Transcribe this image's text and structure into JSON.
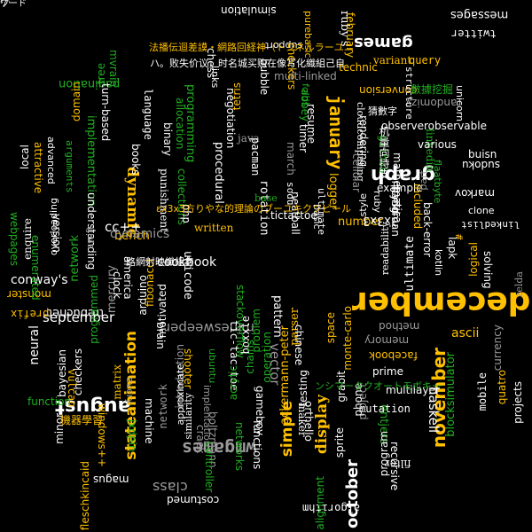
{
  "palette": {
    "background": "#000000",
    "white": "#ffffff",
    "gray": "#9a9a9a",
    "yellow": "#ffc000",
    "green": "#20b020",
    "lime": "#88e000"
  },
  "words": [
    {
      "text": "december",
      "c": "yellow"
    },
    {
      "text": "august",
      "c": "white"
    },
    {
      "text": "november",
      "c": "yellow"
    },
    {
      "text": "january",
      "c": "yellow"
    },
    {
      "text": "stateanimation",
      "c": "yellow"
    },
    {
      "text": "display",
      "c": "yellow"
    },
    {
      "text": "simple",
      "c": "yellow"
    },
    {
      "text": "graph",
      "c": "white"
    },
    {
      "text": "class",
      "c": "gray"
    },
    {
      "text": "games",
      "c": "white"
    },
    {
      "text": "wmgames",
      "c": "gray"
    },
    {
      "text": "september",
      "c": "white"
    },
    {
      "text": "neural",
      "c": "white"
    },
    {
      "text": "october",
      "c": "white"
    },
    {
      "text": "network",
      "c": "green"
    },
    {
      "text": "programming",
      "c": "green"
    },
    {
      "text": "dynamic",
      "c": "yellow"
    },
    {
      "text": "rotation",
      "c": "white"
    },
    {
      "text": "vector",
      "c": "gray"
    },
    {
      "text": "conway's",
      "c": "white"
    },
    {
      "text": "shooter",
      "c": "yellow"
    },
    {
      "text": "ascii",
      "c": "yellow"
    },
    {
      "text": "facebook",
      "c": "yellow"
    },
    {
      "text": "messages",
      "c": "white"
    },
    {
      "text": "twitter",
      "c": "white"
    },
    {
      "text": "support",
      "c": "white"
    },
    {
      "text": "chess",
      "c": "white"
    },
    {
      "text": "ruby's",
      "c": "white"
    },
    {
      "text": "haskell",
      "c": "white"
    },
    {
      "text": "entjers",
      "c": "green"
    },
    {
      "text": "monster",
      "c": "yellow"
    },
    {
      "text": "prefix",
      "c": "yellow"
    },
    {
      "text": "trebuchet",
      "c": "white"
    },
    {
      "text": "ackermann-peter",
      "c": "yellow"
    },
    {
      "text": "stackoverflow",
      "c": "green"
    },
    {
      "text": "minesweeper",
      "c": "gray"
    },
    {
      "text": "operation",
      "c": "green"
    },
    {
      "text": "problem",
      "c": "green"
    },
    {
      "text": "parser",
      "c": "yellow"
    },
    {
      "text": "pattern",
      "c": "white"
    },
    {
      "text": "monte-carlo",
      "c": "yellow"
    },
    {
      "text": "space",
      "c": "yellow"
    },
    {
      "text": "memory",
      "c": "gray"
    },
    {
      "text": "method",
      "c": "gray"
    },
    {
      "text": "prime",
      "c": "white"
    },
    {
      "text": "mutation",
      "c": "white"
    },
    {
      "text": "multilayer",
      "c": "white"
    },
    {
      "text": "blocksimulator",
      "c": "green"
    },
    {
      "text": "currency",
      "c": "gray"
    },
    {
      "text": "zelda",
      "c": "gray"
    },
    {
      "text": "solving",
      "c": "white"
    },
    {
      "text": "logical",
      "c": "yellow"
    },
    {
      "text": "linkedlist",
      "c": "white"
    },
    {
      "text": "clone",
      "c": "white"
    },
    {
      "text": "markov",
      "c": "white"
    },
    {
      "text": "sudoku",
      "c": "white"
    },
    {
      "text": "buisn",
      "c": "white"
    },
    {
      "text": "observerobservable",
      "c": "white"
    },
    {
      "text": "randomizy",
      "c": "gray"
    },
    {
      "text": "query",
      "c": "yellow"
    },
    {
      "text": "variant",
      "c": "yellow"
    },
    {
      "text": "technic",
      "c": "yellow"
    },
    {
      "text": "february",
      "c": "yellow"
    },
    {
      "text": "purebasic",
      "c": "yellow"
    },
    {
      "text": "checkers",
      "c": "yellow"
    },
    {
      "text": "conversion",
      "c": "yellow"
    },
    {
      "text": "structure",
      "c": "white"
    },
    {
      "text": "simulation",
      "c": "white"
    },
    {
      "text": "implementation",
      "c": "green"
    },
    {
      "text": "allocation",
      "c": "green"
    },
    {
      "text": "collections",
      "c": "green"
    },
    {
      "text": "written",
      "c": "yellow"
    },
    {
      "text": "procedural",
      "c": "white"
    },
    {
      "text": "unicode",
      "c": "white"
    },
    {
      "text": "tictactoe",
      "c": "white"
    },
    {
      "text": "neatball",
      "c": "white"
    },
    {
      "text": "abbey",
      "c": "green"
    },
    {
      "text": "logger",
      "c": "yellow"
    },
    {
      "text": "number",
      "c": "yellow"
    },
    {
      "text": "basic",
      "c": "white"
    },
    {
      "text": "ultimate",
      "c": "white"
    },
    {
      "text": "resume",
      "c": "white"
    },
    {
      "text": "cloudcomputing",
      "c": "white"
    },
    {
      "text": "rendering",
      "c": "white"
    },
    {
      "text": "cellular",
      "c": "gray"
    },
    {
      "text": "mathematica",
      "c": "white"
    },
    {
      "text": "ruby",
      "c": "white"
    },
    {
      "text": "ultimate",
      "c": "white"
    },
    {
      "text": "back-error",
      "c": "white"
    },
    {
      "text": "hangman",
      "c": "white"
    },
    {
      "text": "unity3d",
      "c": "white"
    },
    {
      "text": "example",
      "c": "white"
    },
    {
      "text": "flaatbyte",
      "c": "green"
    },
    {
      "text": "linkedin",
      "c": "green"
    },
    {
      "text": "github",
      "c": "green"
    },
    {
      "text": "included",
      "c": "yellow"
    },
    {
      "text": "mvrain",
      "c": "green"
    },
    {
      "text": "tree",
      "c": "green"
    },
    {
      "text": "pagination",
      "c": "green"
    },
    {
      "text": "turn-based",
      "c": "white"
    },
    {
      "text": "domain",
      "c": "yellow"
    },
    {
      "text": "language",
      "c": "white"
    },
    {
      "text": "books",
      "c": "white"
    },
    {
      "text": "binary",
      "c": "white"
    },
    {
      "text": "punishment",
      "c": "white"
    },
    {
      "text": "local",
      "c": "white"
    },
    {
      "text": "attractive",
      "c": "yellow"
    },
    {
      "text": "advanced",
      "c": "white"
    },
    {
      "text": "arguments",
      "c": "green"
    },
    {
      "text": "understanding",
      "c": "white"
    },
    {
      "text": "swift",
      "c": "gray"
    },
    {
      "text": "overloading",
      "c": "white"
    },
    {
      "text": "version",
      "c": "white"
    },
    {
      "text": "enumerated",
      "c": "green"
    },
    {
      "text": "webpages",
      "c": "green"
    },
    {
      "text": "enquire",
      "c": "white"
    },
    {
      "text": "programmed",
      "c": "green"
    },
    {
      "text": "mercury",
      "c": "gray"
    },
    {
      "text": "arduino",
      "c": "white"
    },
    {
      "text": "motivated",
      "c": "white"
    },
    {
      "text": "america",
      "c": "white"
    },
    {
      "text": "fibonacci",
      "c": "yellow"
    },
    {
      "text": "php",
      "c": "white"
    },
    {
      "text": "clock",
      "c": "white"
    },
    {
      "text": "brain",
      "c": "white"
    },
    {
      "text": "introduction",
      "c": "gray"
    },
    {
      "text": "matrix",
      "c": "yellow"
    },
    {
      "text": "checkers",
      "c": "white"
    },
    {
      "text": "bayesian",
      "c": "white"
    },
    {
      "text": "vulcan",
      "c": "yellow"
    },
    {
      "text": "function",
      "c": "green"
    },
    {
      "text": "windows++",
      "c": "yellow"
    },
    {
      "text": "jxdpin",
      "c": "green"
    },
    {
      "text": "machine",
      "c": "white"
    },
    {
      "text": "every",
      "c": "gray"
    },
    {
      "text": "approximate",
      "c": "white"
    },
    {
      "text": "network",
      "c": "gray"
    },
    {
      "text": "similarity",
      "c": "white"
    },
    {
      "text": "implentation",
      "c": "gray"
    },
    {
      "text": "boltzmann",
      "c": "gray"
    },
    {
      "text": "crack",
      "c": "gray"
    },
    {
      "text": "networks",
      "c": "green"
    },
    {
      "text": "controller",
      "c": "green"
    },
    {
      "text": "tic-tac-toe",
      "c": "white"
    },
    {
      "text": "ubuntu",
      "c": "green"
    },
    {
      "text": "gameboy",
      "c": "white"
    },
    {
      "text": "functions",
      "c": "white"
    },
    {
      "text": "testing",
      "c": "white"
    },
    {
      "text": "maker",
      "c": "white"
    },
    {
      "text": "chinese",
      "c": "white"
    },
    {
      "text": "boxxle",
      "c": "white"
    },
    {
      "text": "chains",
      "c": "green"
    },
    {
      "text": "acrylic",
      "c": "green"
    },
    {
      "text": "orthello",
      "c": "white"
    },
    {
      "text": "grabit",
      "c": "white"
    },
    {
      "text": "projects",
      "c": "white"
    },
    {
      "text": "quatro",
      "c": "yellow"
    },
    {
      "text": "mobile",
      "c": "white"
    },
    {
      "text": "sprite",
      "c": "white"
    },
    {
      "text": "filter",
      "c": "white"
    },
    {
      "text": "project",
      "c": "gray"
    },
    {
      "text": "phone",
      "c": "white"
    },
    {
      "text": "program",
      "c": "white"
    },
    {
      "text": "recursive",
      "c": "white"
    },
    {
      "text": "algorithm",
      "c": "white"
    },
    {
      "text": "alignment",
      "c": "green"
    },
    {
      "text": "costumed",
      "c": "white"
    },
    {
      "text": "fleschkincaid",
      "c": "yellow"
    },
    {
      "text": "magus",
      "c": "white"
    },
    {
      "text": "minor",
      "c": "white"
    },
    {
      "text": "java",
      "c": "gray"
    },
    {
      "text": "pacman",
      "c": "white"
    },
    {
      "text": "tetris",
      "c": "yellow"
    },
    {
      "text": "negotiation",
      "c": "white"
    },
    {
      "text": "bubble",
      "c": "white"
    },
    {
      "text": "multi-linked",
      "c": "gray"
    },
    {
      "text": "march",
      "c": "gray"
    },
    {
      "text": "timer",
      "c": "white"
    },
    {
      "text": "sodu",
      "c": "white"
    },
    {
      "text": "folds",
      "c": "green"
    },
    {
      "text": "links",
      "c": "white"
    },
    {
      "text": "base",
      "c": "green"
    },
    {
      "text": "bench",
      "c": "yellow"
    },
    {
      "text": "cc++",
      "c": "white"
    },
    {
      "text": "3x3x3",
      "c": "white"
    },
    {
      "text": "#",
      "c": "yellow"
    },
    {
      "text": "kotlin",
      "c": "white"
    },
    {
      "text": "lapk",
      "c": "white"
    },
    {
      "text": "various",
      "c": "white"
    },
    {
      "text": "unicorn",
      "c": "white"
    },
    {
      "text": "style",
      "c": "white"
    },
    {
      "text": "part",
      "c": "gray"
    },
    {
      "text": "readability",
      "c": "white"
    },
    {
      "text": "dynamics",
      "c": "gray"
    },
    {
      "text": "cookbook",
      "c": "white"
    },
    {
      "text": "ɛx3x3方りやな的理論のブーユキクツビール",
      "c": "yellow"
    },
    {
      "text": "法播伝迴差謨・網路回経神（トンネルラーユニ",
      "c": "yellow"
    },
    {
      "text": "ハ。败失价议，时名城买购在像写化織組己自",
      "c": "white"
    },
    {
      "text": "机量向持支",
      "c": "white"
    },
    {
      "text": "路網射映織組自",
      "c": "white"
    },
    {
      "text": "ンシマータクオートモボキー",
      "c": "green"
    },
    {
      "text": "機器學習",
      "c": "yellow"
    },
    {
      "text": "數據挖掘",
      "c": "green"
    },
    {
      "text": "猜數字",
      "c": "white"
    },
    {
      "text": "ワード",
      "c": "white"
    },
    {
      "text": "ˢ/ʰ",
      "c": "white"
    }
  ]
}
